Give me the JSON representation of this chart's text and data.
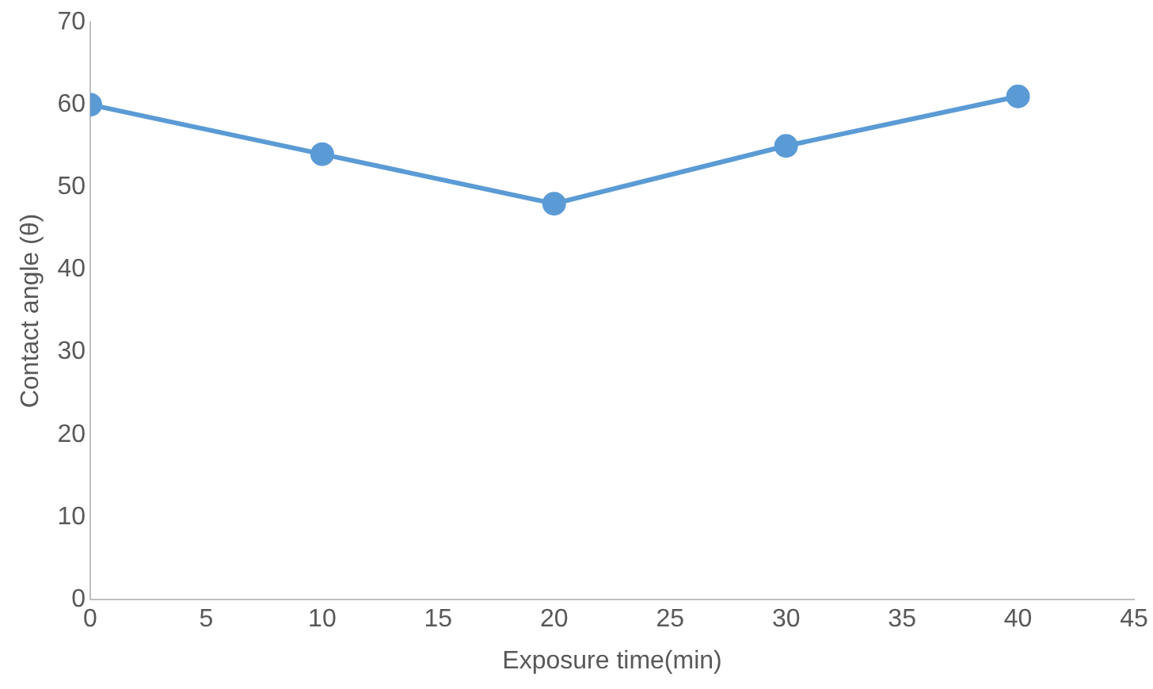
{
  "chart_data": {
    "type": "line",
    "xlabel": "Exposure time(min)",
    "ylabel": "Contact angle (θ)",
    "x": [
      0,
      10,
      20,
      30,
      40
    ],
    "series": [
      {
        "color": "#5b9bd5",
        "values": [
          60,
          54,
          48,
          55,
          61
        ]
      }
    ],
    "xlim": [
      0,
      45
    ],
    "xticks": [
      0,
      5,
      10,
      15,
      20,
      25,
      30,
      35,
      40,
      45
    ],
    "ylim": [
      0,
      70
    ],
    "yticks": [
      0,
      10,
      20,
      30,
      40,
      50,
      60,
      70
    ],
    "grid": false,
    "legend": false,
    "marker": "circle",
    "line_style": "solid"
  }
}
